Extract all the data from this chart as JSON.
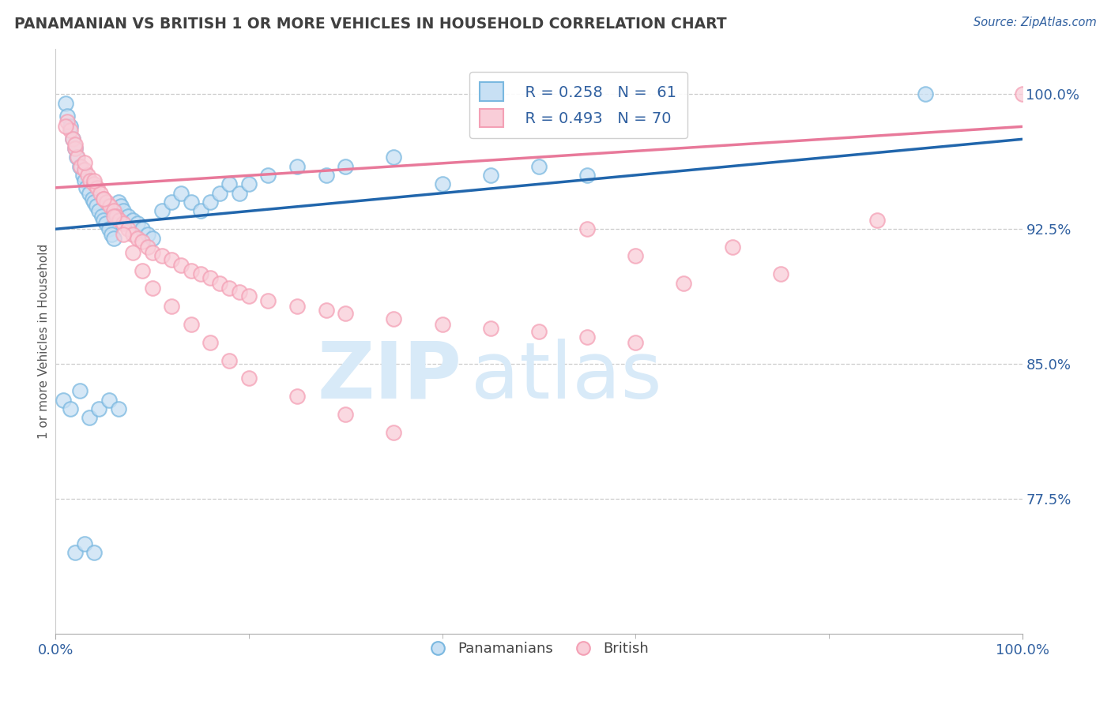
{
  "title": "PANAMANIAN VS BRITISH 1 OR MORE VEHICLES IN HOUSEHOLD CORRELATION CHART",
  "source": "Source: ZipAtlas.com",
  "ylabel": "1 or more Vehicles in Household",
  "xlim": [
    0.0,
    100.0
  ],
  "ylim": [
    70.0,
    102.5
  ],
  "yticks": [
    77.5,
    85.0,
    92.5,
    100.0
  ],
  "xtick_positions": [
    0.0,
    100.0
  ],
  "xtick_labels": [
    "0.0%",
    "100.0%"
  ],
  "ytick_labels": [
    "77.5%",
    "85.0%",
    "92.5%",
    "100.0%"
  ],
  "legend_r_blue": "R = 0.258",
  "legend_n_blue": "N =  61",
  "legend_r_pink": "R = 0.493",
  "legend_n_pink": "N = 70",
  "legend_label_blue": "Panamanians",
  "legend_label_pink": "British",
  "blue_color": "#7ab8e0",
  "pink_color": "#f4a0b5",
  "blue_line_color": "#2166ac",
  "pink_line_color": "#e8799a",
  "watermark_zip": "ZIP",
  "watermark_atlas": "atlas",
  "watermark_color": "#d8eaf8",
  "blue_x": [
    1.0,
    1.2,
    1.5,
    1.8,
    2.0,
    2.2,
    2.5,
    2.8,
    3.0,
    3.2,
    3.5,
    3.8,
    4.0,
    4.2,
    4.5,
    4.8,
    5.0,
    5.2,
    5.5,
    5.8,
    6.0,
    6.2,
    6.5,
    6.8,
    7.0,
    7.5,
    8.0,
    8.5,
    9.0,
    9.5,
    10.0,
    11.0,
    12.0,
    13.0,
    14.0,
    15.0,
    16.0,
    17.0,
    18.0,
    19.0,
    20.0,
    22.0,
    25.0,
    28.0,
    30.0,
    35.0,
    40.0,
    45.0,
    50.0,
    55.0,
    90.0,
    0.8,
    1.5,
    2.5,
    3.5,
    4.5,
    5.5,
    6.5,
    2.0,
    3.0,
    4.0
  ],
  "blue_y": [
    99.5,
    98.8,
    98.2,
    97.5,
    97.0,
    96.5,
    96.0,
    95.5,
    95.2,
    94.8,
    94.5,
    94.2,
    94.0,
    93.8,
    93.5,
    93.2,
    93.0,
    92.8,
    92.5,
    92.2,
    92.0,
    93.5,
    94.0,
    93.8,
    93.5,
    93.2,
    93.0,
    92.8,
    92.5,
    92.2,
    92.0,
    93.5,
    94.0,
    94.5,
    94.0,
    93.5,
    94.0,
    94.5,
    95.0,
    94.5,
    95.0,
    95.5,
    96.0,
    95.5,
    96.0,
    96.5,
    95.0,
    95.5,
    96.0,
    95.5,
    100.0,
    83.0,
    82.5,
    83.5,
    82.0,
    82.5,
    83.0,
    82.5,
    74.5,
    75.0,
    74.5
  ],
  "pink_x": [
    1.2,
    1.5,
    1.8,
    2.0,
    2.3,
    2.6,
    3.0,
    3.3,
    3.6,
    4.0,
    4.3,
    4.6,
    5.0,
    5.3,
    5.6,
    6.0,
    6.3,
    6.6,
    7.0,
    7.5,
    8.0,
    8.5,
    9.0,
    9.5,
    10.0,
    11.0,
    12.0,
    13.0,
    14.0,
    15.0,
    16.0,
    17.0,
    18.0,
    19.0,
    20.0,
    22.0,
    25.0,
    28.0,
    30.0,
    35.0,
    40.0,
    45.0,
    50.0,
    55.0,
    60.0,
    100.0,
    1.0,
    2.0,
    3.0,
    4.0,
    5.0,
    6.0,
    7.0,
    8.0,
    9.0,
    10.0,
    12.0,
    14.0,
    16.0,
    18.0,
    20.0,
    25.0,
    30.0,
    35.0,
    85.0,
    70.0,
    55.0,
    60.0,
    65.0,
    75.0
  ],
  "pink_y": [
    98.5,
    98.0,
    97.5,
    97.0,
    96.5,
    96.0,
    95.8,
    95.5,
    95.2,
    95.0,
    94.8,
    94.5,
    94.2,
    94.0,
    93.8,
    93.5,
    93.2,
    93.0,
    92.8,
    92.5,
    92.2,
    92.0,
    91.8,
    91.5,
    91.2,
    91.0,
    90.8,
    90.5,
    90.2,
    90.0,
    89.8,
    89.5,
    89.2,
    89.0,
    88.8,
    88.5,
    88.2,
    88.0,
    87.8,
    87.5,
    87.2,
    87.0,
    86.8,
    86.5,
    86.2,
    100.0,
    98.2,
    97.2,
    96.2,
    95.2,
    94.2,
    93.2,
    92.2,
    91.2,
    90.2,
    89.2,
    88.2,
    87.2,
    86.2,
    85.2,
    84.2,
    83.2,
    82.2,
    81.2,
    93.0,
    91.5,
    92.5,
    91.0,
    89.5,
    90.0
  ],
  "blue_trendline_x0": 0,
  "blue_trendline_x1": 100,
  "blue_trendline_y0": 92.5,
  "blue_trendline_y1": 97.5,
  "pink_trendline_x0": 0,
  "pink_trendline_x1": 100,
  "pink_trendline_y0": 94.8,
  "pink_trendline_y1": 98.2
}
